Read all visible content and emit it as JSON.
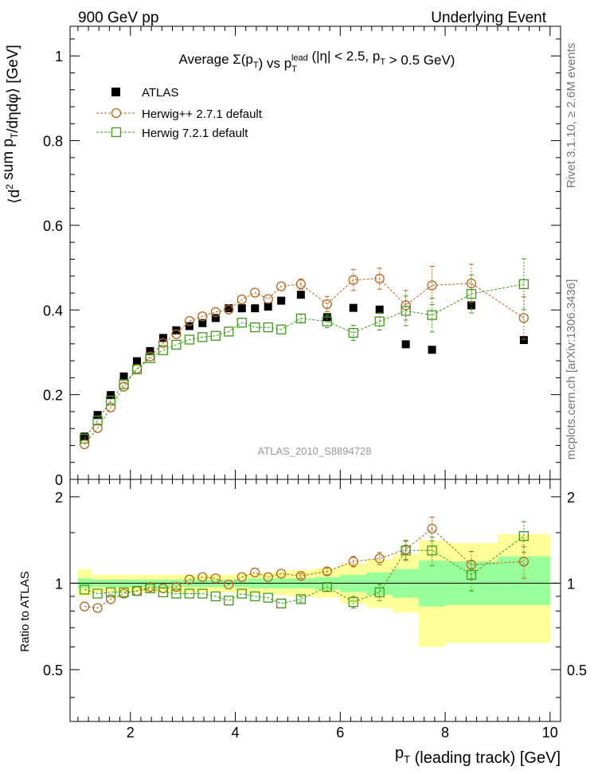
{
  "header": {
    "left": "900 GeV pp",
    "right": "Underlying Event"
  },
  "side_labels": {
    "top": "Rivet 3.1.10, ≥ 2.6M events",
    "bottom": "mcplots.cern.ch [arXiv:1306.3436]"
  },
  "watermark": "ATLAS_2010_S8894728",
  "colors": {
    "atlas": "#000000",
    "herwigpp": "#b8651e",
    "herwig7": "#3f9a1c",
    "band_outer": "#ffff99",
    "band_inner": "#99ff99"
  },
  "chart_data": [
    {
      "type": "scatter",
      "title": "Average Σ(p_T) vs p_T^lead (|η| < 2.5, p_T > 0.5 GeV)",
      "ylabel": "⟨d² sum p_T/dηdφ⟩ [GeV]",
      "xlabel": "",
      "xlim": [
        0.85,
        10.2
      ],
      "ylim": [
        0,
        1.07
      ],
      "yticks": [
        "0",
        "0.2",
        "0.4",
        "0.6",
        "0.8",
        "1"
      ],
      "grid": false,
      "legend_position": "top-left",
      "x": [
        1.125,
        1.375,
        1.625,
        1.875,
        2.125,
        2.375,
        2.625,
        2.875,
        3.125,
        3.375,
        3.625,
        3.875,
        4.125,
        4.375,
        4.625,
        4.875,
        5.25,
        5.75,
        6.25,
        6.75,
        7.25,
        7.75,
        8.5,
        9.5
      ],
      "series": [
        {
          "name": "ATLAS",
          "marker": "filled-square",
          "values": [
            0.101,
            0.152,
            0.199,
            0.243,
            0.279,
            0.303,
            0.334,
            0.352,
            0.362,
            0.369,
            0.381,
            0.404,
            0.404,
            0.404,
            0.408,
            0.422,
            0.436,
            0.383,
            0.405,
            0.401,
            0.319,
            0.306,
            0.411,
            0.329
          ]
        },
        {
          "name": "Herwig++ 2.7.1 default",
          "marker": "open-circle",
          "values": [
            0.083,
            0.121,
            0.17,
            0.219,
            0.261,
            0.29,
            0.322,
            0.343,
            0.374,
            0.385,
            0.395,
            0.401,
            0.425,
            0.441,
            0.426,
            0.456,
            0.461,
            0.414,
            0.471,
            0.474,
            0.411,
            0.458,
            0.463,
            0.381
          ],
          "errors": [
            0,
            0,
            0,
            0,
            0,
            0,
            0,
            0,
            0,
            0,
            0,
            0,
            0,
            0,
            0,
            0,
            0.012,
            0.018,
            0.025,
            0.025,
            0.035,
            0.045,
            0.045,
            0.05
          ]
        },
        {
          "name": "Herwig 7.2.1 default",
          "marker": "open-square",
          "values": [
            0.096,
            0.139,
            0.186,
            0.225,
            0.26,
            0.286,
            0.305,
            0.318,
            0.33,
            0.336,
            0.339,
            0.349,
            0.37,
            0.359,
            0.359,
            0.354,
            0.38,
            0.373,
            0.346,
            0.373,
            0.398,
            0.388,
            0.438,
            0.461
          ],
          "errors": [
            0,
            0,
            0,
            0,
            0,
            0,
            0,
            0,
            0,
            0,
            0,
            0,
            0,
            0,
            0,
            0,
            0.01,
            0.015,
            0.018,
            0.02,
            0.035,
            0.04,
            0.045,
            0.06
          ]
        }
      ]
    },
    {
      "type": "scatter",
      "ylabel": "Ratio to ATLAS",
      "xlabel": "p_T (leading track) [GeV]",
      "xlim": [
        0.85,
        10.2
      ],
      "ylim": [
        0.33,
        2.3
      ],
      "xticks": [
        "2",
        "4",
        "6",
        "8",
        "10"
      ],
      "yticks": [
        "0.5",
        "1",
        "2"
      ],
      "reference_line": 1,
      "bin_edges": [
        1.0,
        1.25,
        1.5,
        1.75,
        2.0,
        2.25,
        2.5,
        2.75,
        3.0,
        3.25,
        3.5,
        3.75,
        4.0,
        4.25,
        4.5,
        4.75,
        5.0,
        5.5,
        6.0,
        6.5,
        7.0,
        7.5,
        8.0,
        9.0,
        10.0
      ],
      "band_outer": {
        "lower": [
          0.9,
          0.93,
          0.93,
          0.93,
          0.93,
          0.93,
          0.93,
          0.93,
          0.93,
          0.93,
          0.93,
          0.93,
          0.93,
          0.92,
          0.92,
          0.91,
          0.9,
          0.89,
          0.85,
          0.82,
          0.79,
          0.6,
          0.62,
          0.62
        ],
        "upper": [
          1.12,
          1.07,
          1.07,
          1.07,
          1.07,
          1.07,
          1.07,
          1.07,
          1.07,
          1.07,
          1.07,
          1.07,
          1.08,
          1.08,
          1.09,
          1.1,
          1.11,
          1.13,
          1.17,
          1.21,
          1.26,
          1.41,
          1.38,
          1.48
        ]
      },
      "band_inner": {
        "lower": [
          0.96,
          0.97,
          0.97,
          0.97,
          0.97,
          0.97,
          0.97,
          0.97,
          0.97,
          0.97,
          0.97,
          0.97,
          0.97,
          0.96,
          0.96,
          0.96,
          0.96,
          0.95,
          0.93,
          0.91,
          0.89,
          0.83,
          0.84,
          0.84
        ],
        "upper": [
          1.04,
          1.03,
          1.03,
          1.03,
          1.03,
          1.03,
          1.03,
          1.03,
          1.03,
          1.03,
          1.03,
          1.03,
          1.03,
          1.04,
          1.04,
          1.04,
          1.04,
          1.05,
          1.07,
          1.09,
          1.12,
          1.2,
          1.19,
          1.24
        ]
      },
      "x": [
        1.125,
        1.375,
        1.625,
        1.875,
        2.125,
        2.375,
        2.625,
        2.875,
        3.125,
        3.375,
        3.625,
        3.875,
        4.125,
        4.375,
        4.625,
        4.875,
        5.25,
        5.75,
        6.25,
        6.75,
        7.25,
        7.75,
        8.5,
        9.5
      ],
      "series": [
        {
          "name": "Herwig++ 2.7.1 default",
          "marker": "open-circle",
          "values": [
            0.83,
            0.82,
            0.88,
            0.92,
            0.94,
            0.97,
            0.96,
            0.97,
            1.03,
            1.05,
            1.04,
            0.99,
            1.05,
            1.09,
            1.05,
            1.08,
            1.06,
            1.1,
            1.19,
            1.22,
            1.31,
            1.55,
            1.16,
            1.19
          ],
          "errors": [
            0,
            0,
            0,
            0,
            0,
            0,
            0,
            0,
            0,
            0,
            0,
            0,
            0,
            0,
            0,
            0,
            0.02,
            0.03,
            0.05,
            0.06,
            0.1,
            0.15,
            0.13,
            0.15
          ]
        },
        {
          "name": "Herwig 7.2.1 default",
          "marker": "open-square",
          "values": [
            0.95,
            0.92,
            0.93,
            0.93,
            0.94,
            0.96,
            0.93,
            0.92,
            0.92,
            0.92,
            0.9,
            0.87,
            0.92,
            0.9,
            0.89,
            0.85,
            0.88,
            0.97,
            0.86,
            0.93,
            1.3,
            1.3,
            1.07,
            1.46
          ],
          "errors": [
            0,
            0,
            0,
            0,
            0,
            0,
            0,
            0,
            0,
            0,
            0,
            0,
            0,
            0,
            0,
            0,
            0.02,
            0.03,
            0.04,
            0.06,
            0.1,
            0.15,
            0.13,
            0.18
          ]
        }
      ]
    }
  ]
}
